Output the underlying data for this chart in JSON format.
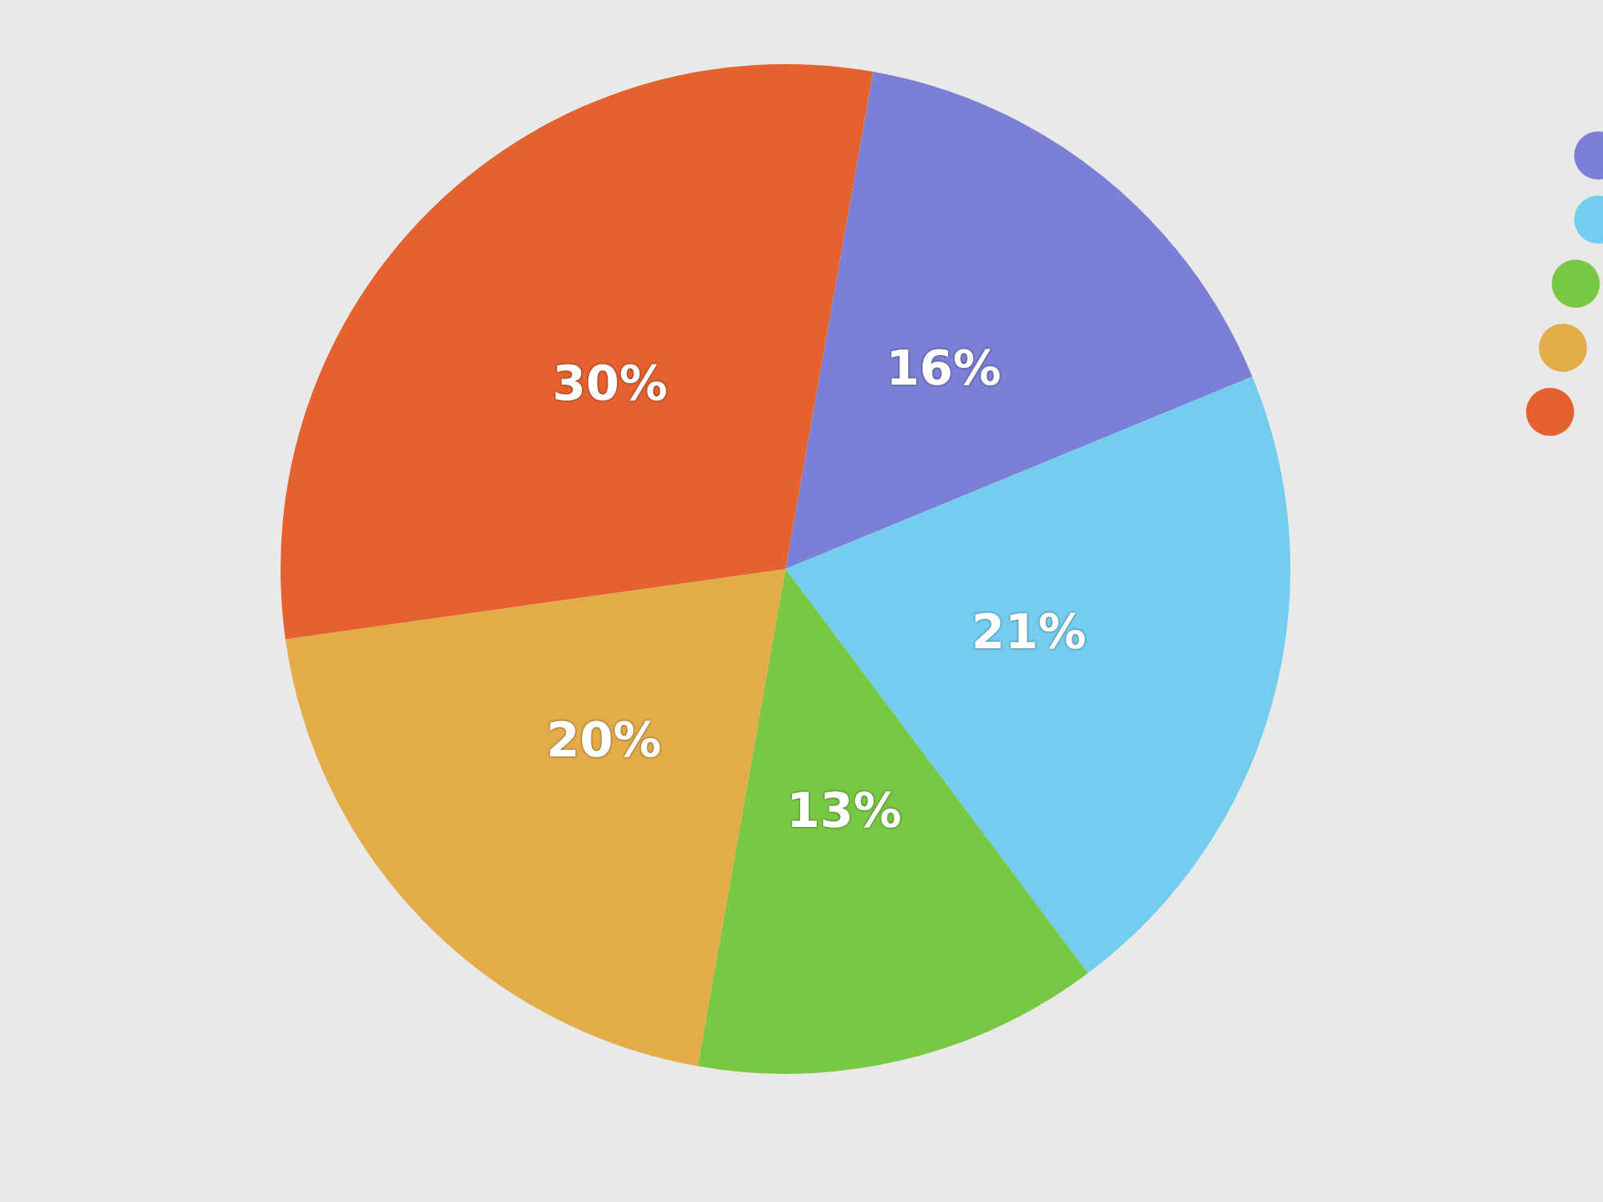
{
  "chart_data": {
    "type": "pie",
    "categories": [
      null,
      null,
      null,
      null,
      null
    ],
    "values": [
      16,
      21,
      13,
      20,
      30
    ],
    "colors": [
      "#7b7fd6",
      "#74cdef",
      "#78c843",
      "#e3ac48",
      "#e5612f"
    ],
    "value_labels": [
      "16%",
      "21%",
      "13%",
      "20%",
      "30%"
    ]
  }
}
